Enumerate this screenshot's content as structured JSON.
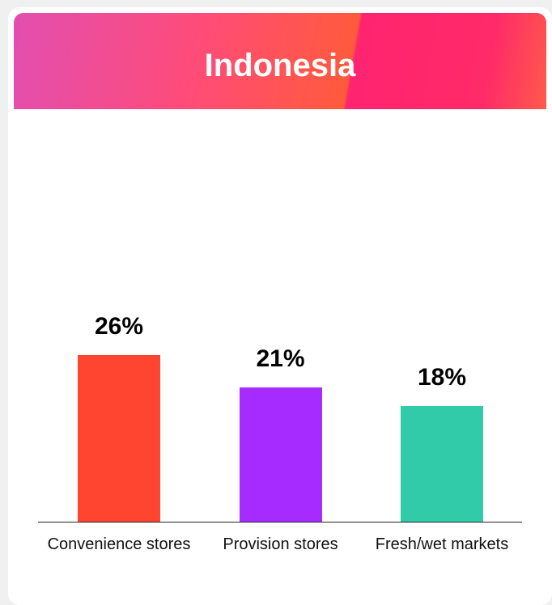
{
  "chart_data": {
    "type": "bar",
    "title": "Indonesia",
    "categories": [
      "Convenience stores",
      "Provision stores",
      "Fresh/wet markets"
    ],
    "values": [
      26,
      21,
      18
    ],
    "value_labels": [
      "26%",
      "21%",
      "18%"
    ],
    "colors": [
      "#ff4530",
      "#a62bff",
      "#31cbaa"
    ]
  }
}
